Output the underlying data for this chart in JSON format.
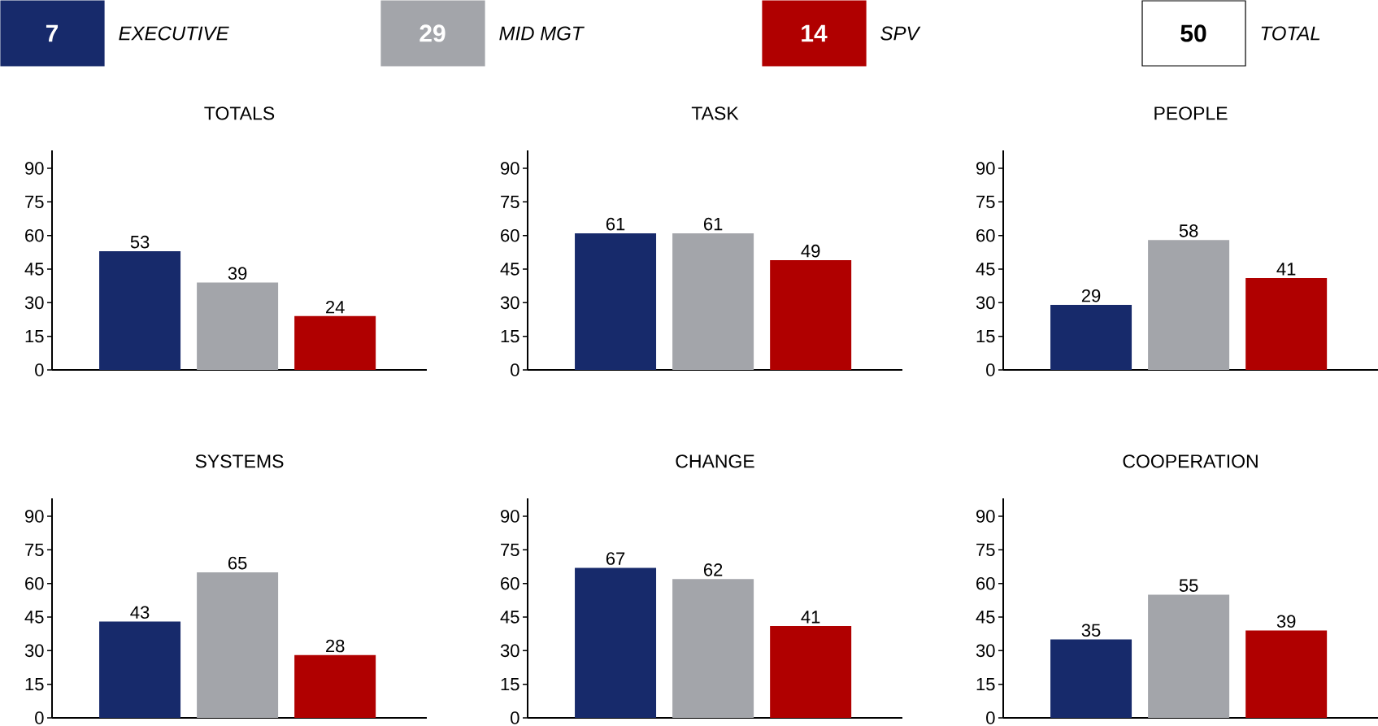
{
  "chart_data": [
    {
      "type": "other",
      "categories": [
        "EXECUTIVE",
        "MID MGT",
        "SPV",
        "TOTAL"
      ],
      "value_labels": [
        "7",
        "29",
        "14",
        "50"
      ],
      "colors": [
        "#172a6b",
        "#a3a5aa",
        "#b00000",
        "#ffffff"
      ]
    },
    {
      "type": "bar",
      "title": "TOTALS",
      "categories": [
        null,
        null,
        null
      ],
      "values": [
        53,
        39,
        24
      ],
      "colors": [
        "#172a6b",
        "#a3a5aa",
        "#b00000"
      ],
      "ylim": [
        0,
        98
      ],
      "yticks": [
        0,
        15,
        30,
        45,
        60,
        75,
        90
      ],
      "data_labels": true,
      "grid": false,
      "tick_labels": "y"
    },
    {
      "type": "bar",
      "title": "TASK",
      "categories": [
        null,
        null,
        null
      ],
      "values": [
        61,
        61,
        49
      ],
      "colors": [
        "#172a6b",
        "#a3a5aa",
        "#b00000"
      ],
      "ylim": [
        0,
        98
      ],
      "yticks": [
        0,
        15,
        30,
        45,
        60,
        75,
        90
      ],
      "data_labels": true,
      "grid": false,
      "tick_labels": "y"
    },
    {
      "type": "bar",
      "title": "PEOPLE",
      "categories": [
        null,
        null,
        null
      ],
      "values": [
        29,
        58,
        41
      ],
      "colors": [
        "#172a6b",
        "#a3a5aa",
        "#b00000"
      ],
      "ylim": [
        0,
        98
      ],
      "yticks": [
        0,
        15,
        30,
        45,
        60,
        75,
        90
      ],
      "data_labels": true,
      "grid": false,
      "tick_labels": "y"
    },
    {
      "type": "bar",
      "title": "SYSTEMS",
      "categories": [
        null,
        null,
        null
      ],
      "values": [
        43,
        65,
        28
      ],
      "colors": [
        "#172a6b",
        "#a3a5aa",
        "#b00000"
      ],
      "ylim": [
        0,
        98
      ],
      "yticks": [
        0,
        15,
        30,
        45,
        60,
        75,
        90
      ],
      "data_labels": true,
      "grid": false,
      "tick_labels": "y"
    },
    {
      "type": "bar",
      "title": "CHANGE",
      "categories": [
        null,
        null,
        null
      ],
      "values": [
        67,
        62,
        41
      ],
      "colors": [
        "#172a6b",
        "#a3a5aa",
        "#b00000"
      ],
      "ylim": [
        0,
        98
      ],
      "yticks": [
        0,
        15,
        30,
        45,
        60,
        75,
        90
      ],
      "data_labels": true,
      "grid": false,
      "tick_labels": "y"
    },
    {
      "type": "bar",
      "title": "COOPERATION",
      "categories": [
        null,
        null,
        null
      ],
      "values": [
        35,
        55,
        39
      ],
      "colors": [
        "#172a6b",
        "#a3a5aa",
        "#b00000"
      ],
      "ylim": [
        0,
        98
      ],
      "yticks": [
        0,
        15,
        30,
        45,
        60,
        75,
        90
      ],
      "data_labels": true,
      "grid": false,
      "tick_labels": "y"
    }
  ]
}
